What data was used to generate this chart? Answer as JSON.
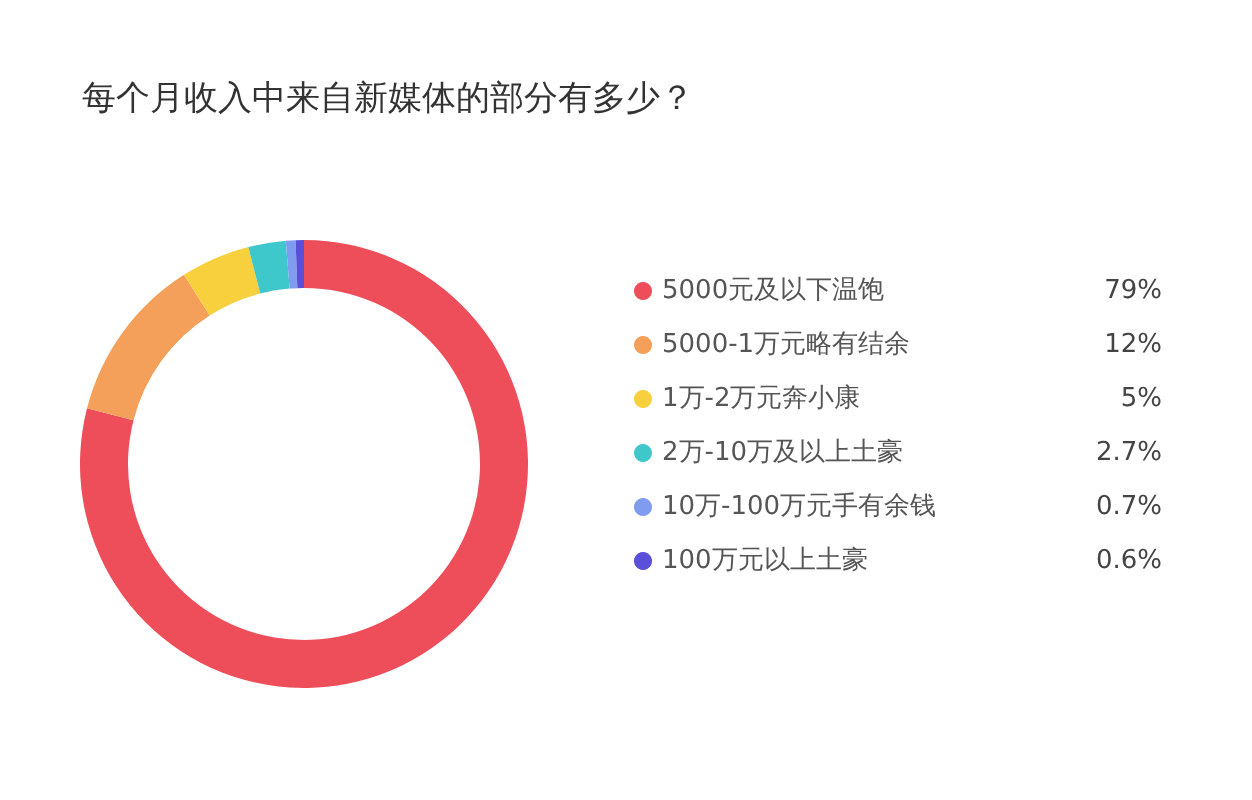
{
  "chart_data": {
    "type": "donut",
    "title": "每个月收入中来自新媒体的部分有多少？",
    "categories": [
      "5000元及以下温饱",
      "5000-1万元略有结余",
      "1万-2万元奔小康",
      "2万-10万及以上土豪",
      "10万-100万元手有余钱",
      "100万元以上土豪"
    ],
    "values": [
      79,
      12,
      5,
      2.7,
      0.7,
      0.6
    ],
    "value_labels": [
      "79%",
      "12%",
      "5%",
      "2.7%",
      "0.7%",
      "0.6%"
    ],
    "colors": [
      "#ee4d5a",
      "#f4a05a",
      "#f8d03e",
      "#3fc8cc",
      "#7f9cf0",
      "#5a4fd8"
    ],
    "legend": "right"
  }
}
